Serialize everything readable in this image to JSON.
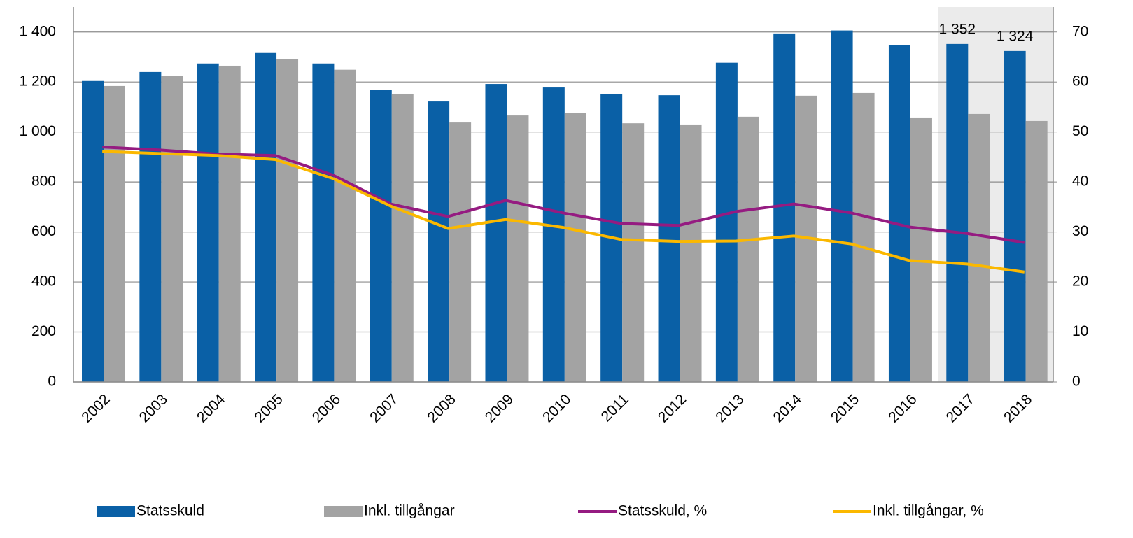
{
  "chart_data": {
    "type": "bar",
    "categories": [
      "2002",
      "2003",
      "2004",
      "2005",
      "2006",
      "2007",
      "2008",
      "2009",
      "2010",
      "2011",
      "2012",
      "2013",
      "2014",
      "2015",
      "2016",
      "2017",
      "2018"
    ],
    "shaded_from": "2017",
    "shade_color": "#ebebeb",
    "series": [
      {
        "name": "Statsskuld",
        "type": "bar",
        "color": "#0a60a6",
        "values": [
          1204,
          1240,
          1274,
          1316,
          1274,
          1167,
          1122,
          1192,
          1178,
          1153,
          1147,
          1277,
          1394,
          1406,
          1347,
          1352,
          1324
        ],
        "value_labels": [
          null,
          null,
          null,
          null,
          null,
          null,
          null,
          null,
          null,
          null,
          null,
          null,
          null,
          null,
          null,
          "1 352",
          "1 324"
        ]
      },
      {
        "name": "Inkl. tillgångar",
        "type": "bar",
        "color": "#a3a3a3",
        "values": [
          1184,
          1223,
          1265,
          1291,
          1249,
          1153,
          1038,
          1066,
          1075,
          1035,
          1030,
          1061,
          1145,
          1156,
          1058,
          1072,
          1044
        ]
      },
      {
        "name": "Statsskuld, %",
        "type": "line",
        "axis": "y2",
        "color": "#951b81",
        "values": [
          47.0,
          46.4,
          45.6,
          45.3,
          41.4,
          35.6,
          33.1,
          36.3,
          33.8,
          31.7,
          31.3,
          34.1,
          35.6,
          33.8,
          31.0,
          29.7,
          27.9
        ]
      },
      {
        "name": "Inkl. tillgångar, %",
        "type": "line",
        "axis": "y2",
        "color": "#fbb800",
        "values": [
          46.1,
          45.7,
          45.3,
          44.5,
          40.7,
          35.2,
          30.7,
          32.5,
          30.9,
          28.5,
          28.1,
          28.2,
          29.2,
          27.6,
          24.3,
          23.6,
          22.0
        ]
      }
    ],
    "ylim": [
      0,
      1500
    ],
    "yticks": [
      0,
      200,
      400,
      600,
      800,
      {
        "value": 1000,
        "label": "1 000"
      },
      {
        "value": 1200,
        "label": "1 200"
      },
      {
        "value": 1400,
        "label": "1 400"
      }
    ],
    "y2lim": [
      0,
      75
    ],
    "y2ticks": [
      0,
      10,
      20,
      30,
      40,
      50,
      60,
      70
    ],
    "grid": true
  }
}
